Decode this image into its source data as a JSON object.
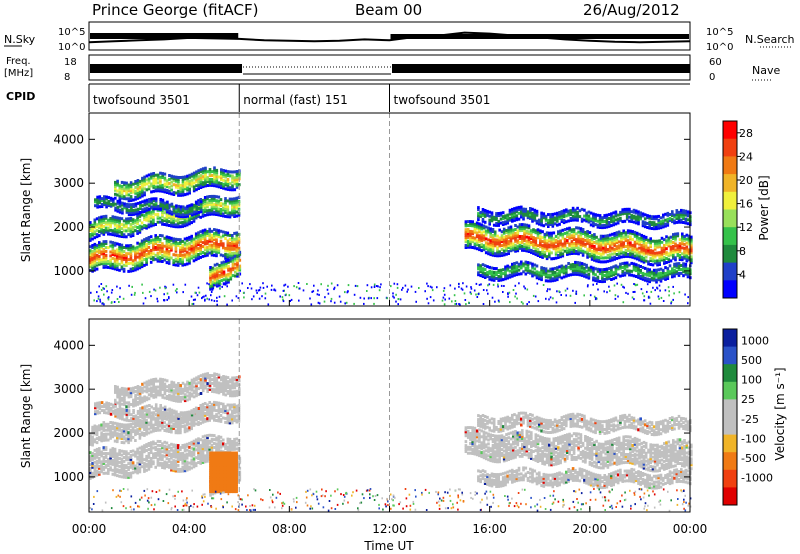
{
  "header": {
    "station": "Prince George (fitACF)",
    "beam": "Beam 00",
    "date": "26/Aug/2012"
  },
  "side_labels": {
    "nsky": "N.Sky",
    "freq": "Freq.",
    "freq_unit": "[MHz]",
    "cpid": "CPID",
    "nsearch": "N.Search",
    "nave": "Nave"
  },
  "cpid_segments": [
    {
      "label": "twofsound 3501",
      "start": 0,
      "end": 6
    },
    {
      "label": "normal (fast) 151",
      "start": 6,
      "end": 12
    },
    {
      "label": "twofsound 3501",
      "start": 12,
      "end": 24
    }
  ],
  "colors": {
    "power": [
      "#0000ff",
      "#2040c8",
      "#1f8a3c",
      "#35c24a",
      "#98e05a",
      "#f0f03c",
      "#f0b428",
      "#f07a14",
      "#f04010",
      "#ff0000"
    ],
    "velocity": [
      "#0a1f9e",
      "#2a52c8",
      "#1f8a3c",
      "#5ac85a",
      "#c0c0c0",
      "#c0c0c0",
      "#f0b428",
      "#f07a14",
      "#f04010",
      "#e00000"
    ],
    "grey": "#c0c0c0"
  },
  "chart_data": [
    {
      "type": "line",
      "name": "noise",
      "ylabel_left": "N.Sky",
      "ylabel_right": "N.Search",
      "yticks_left": [
        "10^5",
        "10^0"
      ],
      "yticks_right": [
        "10^5",
        "10^0"
      ],
      "x": [
        0,
        1,
        2,
        3,
        4,
        5,
        6,
        7,
        8,
        9,
        10,
        11,
        12,
        13,
        14,
        15,
        16,
        17,
        18,
        19,
        20,
        21,
        22,
        23,
        24
      ],
      "values": [
        1.2,
        1.4,
        1.6,
        1.8,
        2.1,
        2.0,
        1.9,
        1.6,
        1.5,
        1.4,
        1.5,
        1.8,
        1.6,
        2.3,
        2.6,
        3.2,
        3.0,
        2.6,
        2.2,
        1.8,
        1.5,
        1.3,
        1.2,
        1.3,
        1.4
      ],
      "ylim": [
        0,
        5
      ]
    },
    {
      "type": "line",
      "name": "frequency",
      "ylabel_left": "Freq. [MHz]",
      "yticks_left": [
        "18",
        "8"
      ],
      "yticks_right": [
        "60",
        "0"
      ],
      "ylabel_right": "Nave"
    },
    {
      "type": "heatmap",
      "name": "power",
      "ylabel": "Slant Range [km]",
      "yticks": [
        "1000",
        "2000",
        "3000",
        "4000"
      ],
      "ylim": [
        200,
        4600
      ],
      "x_range": [
        0,
        24
      ],
      "colorbar_label": "Power [dB]",
      "colorbar_ticks": [
        "4",
        "8",
        "12",
        "16",
        "20",
        "24",
        "28"
      ],
      "colorbar_range": [
        0,
        30
      ],
      "bands": [
        {
          "t0": 0.0,
          "t1": 6.0,
          "r_center_start": 1300,
          "r_center_end": 1700,
          "width": 300,
          "peak": 26
        },
        {
          "t0": 0.0,
          "t1": 6.0,
          "r_center_start": 1950,
          "r_center_end": 2600,
          "width": 220,
          "peak": 16
        },
        {
          "t0": 1.0,
          "t1": 6.0,
          "r_center_start": 2900,
          "r_center_end": 3200,
          "width": 220,
          "peak": 17
        },
        {
          "t0": 0.2,
          "t1": 4.5,
          "r_center_start": 2550,
          "r_center_end": 2450,
          "width": 120,
          "peak": 8
        },
        {
          "t0": 4.8,
          "t1": 6.0,
          "r_center_start": 800,
          "r_center_end": 1300,
          "width": 260,
          "peak": 26
        },
        {
          "t0": 15.0,
          "t1": 24.0,
          "r_center_start": 1800,
          "r_center_end": 1500,
          "width": 300,
          "peak": 26
        },
        {
          "t0": 15.5,
          "t1": 24.0,
          "r_center_start": 1050,
          "r_center_end": 1000,
          "width": 150,
          "peak": 10
        },
        {
          "t0": 15.5,
          "t1": 24.0,
          "r_center_start": 2300,
          "r_center_end": 2200,
          "width": 140,
          "peak": 8
        }
      ]
    },
    {
      "type": "heatmap",
      "name": "velocity",
      "ylabel": "Slant Range [km]",
      "yticks": [
        "1000",
        "2000",
        "3000",
        "4000"
      ],
      "ylim": [
        200,
        4600
      ],
      "x_range": [
        0,
        24
      ],
      "xticks": [
        "00:00",
        "04:00",
        "08:00",
        "12:00",
        "16:00",
        "20:00",
        "00:00"
      ],
      "xlabel": "Time UT",
      "colorbar_label": "Velocity [m s⁻¹]",
      "colorbar_ticks": [
        "1000",
        "500",
        "100",
        "25",
        "-25",
        "-100",
        "-500",
        "-1000"
      ],
      "orange_patch": {
        "t0": 4.8,
        "t1": 5.9,
        "r0": 700,
        "r1": 1600,
        "velocity": -300
      }
    }
  ]
}
